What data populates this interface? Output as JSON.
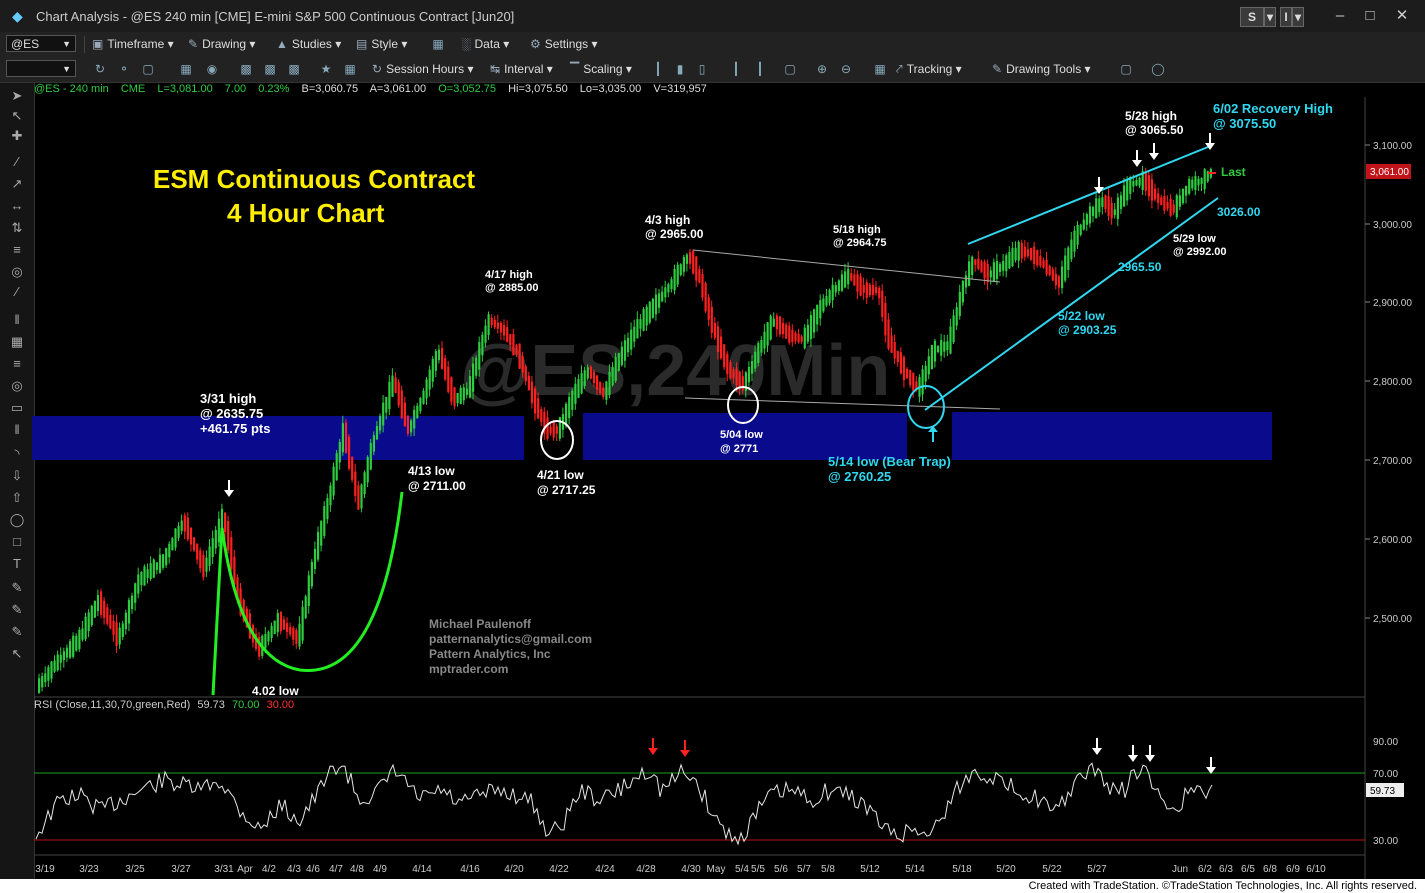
{
  "window": {
    "title": "Chart Analysis - @ES 240 min [CME] E-mini S&P 500 Continuous Contract [Jun20]",
    "btn_s1": "S",
    "btn_s2": "I"
  },
  "toolbar1": {
    "symbol": "@ES",
    "timeframe": "Timeframe",
    "drawing": "Drawing",
    "studies": "Studies",
    "style": "Style",
    "data": "Data",
    "settings": "Settings"
  },
  "toolbar2": {
    "session_hours": "Session Hours",
    "interval": "Interval",
    "scaling": "Scaling",
    "tracking": "Tracking",
    "drawing_tools": "Drawing Tools"
  },
  "status": {
    "symbol": "@ES - 240 min",
    "exchange": "CME",
    "last": "L=3,081.00",
    "change": "7.00",
    "pct": "0.23%",
    "bid": "B=3,060.75",
    "ask": "A=3,061.00",
    "open": "O=3,052.75",
    "high": "Hi=3,075.50",
    "low": "Lo=3,035.00",
    "volume": "V=319,957"
  },
  "rsi": {
    "label": "RSI (Close,11,30,70,green,Red)",
    "value": "59.73",
    "overbought": "70.00",
    "oversold": "30.00",
    "axis": [
      "90.00",
      "70.00",
      "30.00"
    ],
    "value_box": "59.73"
  },
  "price_axis": [
    "3,100.00",
    "3,000.00",
    "2,900.00",
    "2,800.00",
    "2,700.00",
    "2,600.00",
    "2,500.00"
  ],
  "last_price_box": "3,061.00",
  "date_axis": [
    "3/19",
    "3/23",
    "3/25",
    "3/27",
    "3/31",
    "Apr",
    "4/2",
    "4/3",
    "4/6",
    "4/7",
    "4/8",
    "4/9",
    "4/14",
    "4/16",
    "4/20",
    "4/22",
    "4/24",
    "4/28",
    "4/30",
    "May",
    "5/4",
    "5/5",
    "5/6",
    "5/7",
    "5/8",
    "5/12",
    "5/14",
    "5/18",
    "5/20",
    "5/22",
    "5/27",
    "Jun",
    "6/2",
    "6/3",
    "6/5",
    "6/8",
    "6/9",
    "6/10"
  ],
  "watermark": "@ES,240Min",
  "chart_title": [
    "ESM Continuous Contract",
    "4 Hour Chart"
  ],
  "author": [
    "Michael Paulenoff",
    "patternanalytics@gmail.com",
    "Pattern Analytics, Inc",
    "mptrader.com"
  ],
  "annotations": {
    "h331a": "3/31 high",
    "h331b": "@ 2635.75",
    "h331c": "+461.75 pts",
    "l413a": "4/13 low",
    "l413b": "@ 2711.00",
    "h417a": "4/17 high",
    "h417b": "@ 2885.00",
    "l421a": "4/21 low",
    "l421b": "@ 2717.25",
    "h43a": "4/3 high",
    "h43b": "@ 2965.00",
    "l504a": "5/04 low",
    "l504b": "@ 2771",
    "h518a": "5/18 high",
    "h518b": "@ 2964.75",
    "l514a": "5/14 low (Bear Trap)",
    "l514b": "@ 2760.25",
    "l522a": "5/22 low",
    "l522b": "@ 2903.25",
    "v2965": "2965.50",
    "h528a": "5/28 high",
    "h528b": "@ 3065.50",
    "h602a": "6/02 Recovery High",
    "h602b": "@ 3075.50",
    "l529a": "5/29 low",
    "l529b": "@ 2992.00",
    "v3026": "3026.00",
    "last": "Last",
    "l402": "4.02 low"
  },
  "footer": "Created with TradeStation. ©TradeStation Technologies, Inc. All rights reserved.",
  "colors": {
    "bull": "#2ecc40",
    "bear": "#ff2020",
    "support_zone": "#0a0a8c",
    "cyan": "#2fd8f0",
    "yellow": "#ffee00"
  }
}
